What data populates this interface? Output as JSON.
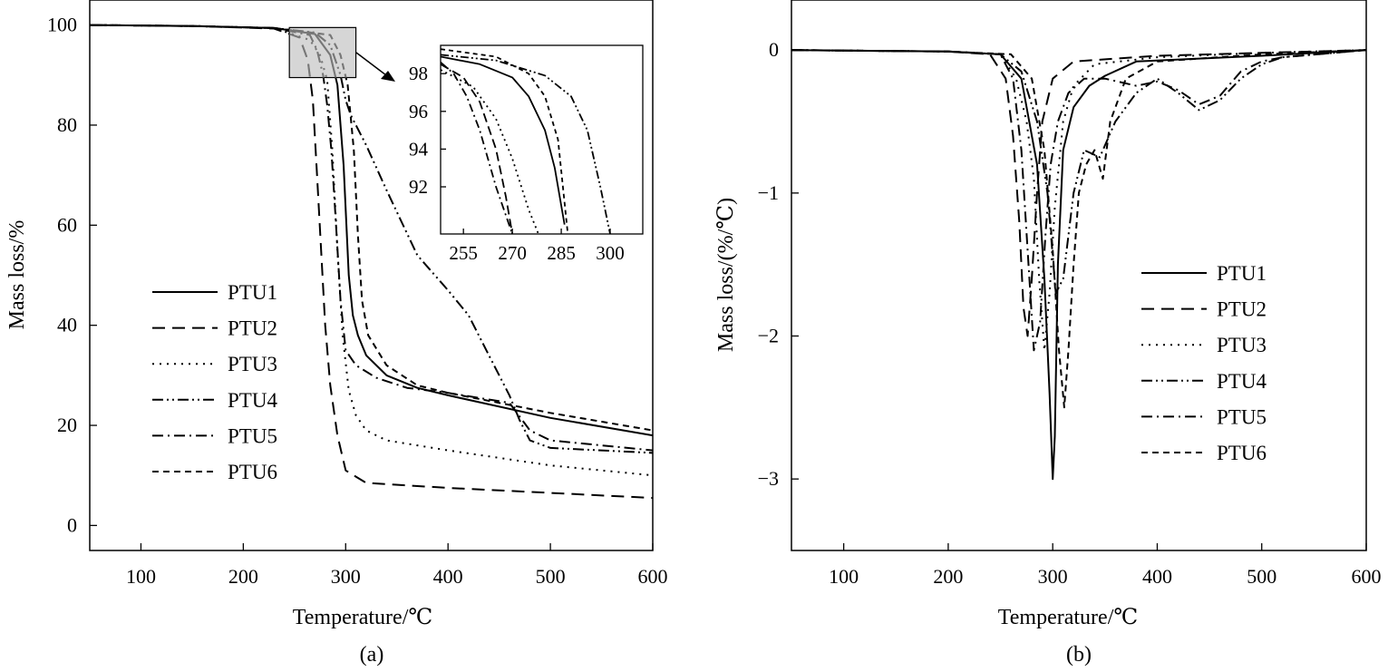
{
  "chart_data": [
    {
      "panel": "(a)",
      "type": "line",
      "xlabel": "Temperature/℃",
      "ylabel": "Mass loss/%",
      "xlim": [
        50,
        600
      ],
      "ylim": [
        -5,
        105
      ],
      "xticks": [
        100,
        200,
        300,
        400,
        500,
        600
      ],
      "yticks": [
        0,
        20,
        40,
        60,
        80,
        100
      ],
      "legend_position": "center-left",
      "series": [
        {
          "name": "PTU1",
          "dash": "solid",
          "x": [
            50,
            150,
            230,
            270,
            285,
            292,
            298,
            303,
            307,
            312,
            320,
            340,
            370,
            400,
            500,
            600
          ],
          "y": [
            100,
            99.8,
            99.4,
            98.2,
            94,
            88,
            72,
            50,
            42,
            38,
            34,
            30,
            27.5,
            26,
            21.5,
            18
          ]
        },
        {
          "name": "PTU2",
          "dash": "long",
          "x": [
            50,
            150,
            230,
            255,
            263,
            268,
            272,
            276,
            280,
            285,
            292,
            300,
            320,
            400,
            500,
            600
          ],
          "y": [
            100,
            99.8,
            99.3,
            97.5,
            93,
            85,
            70,
            55,
            40,
            28,
            18,
            11,
            8.5,
            7.5,
            6.5,
            5.5
          ]
        },
        {
          "name": "PTU3",
          "dash": "dotted",
          "x": [
            50,
            150,
            230,
            265,
            275,
            282,
            287,
            292,
            297,
            303,
            310,
            320,
            340,
            400,
            500,
            600
          ],
          "y": [
            100,
            99.8,
            99.4,
            97,
            94,
            89,
            75,
            55,
            38,
            27,
            22,
            19,
            17,
            15,
            12,
            10
          ]
        },
        {
          "name": "PTU4",
          "dash": "dashdotdot",
          "x": [
            50,
            150,
            230,
            270,
            285,
            295,
            300,
            305,
            310,
            320,
            340,
            370,
            400,
            420,
            440,
            460,
            470,
            480,
            500,
            600
          ],
          "y": [
            100,
            99.8,
            99.4,
            98.5,
            96,
            90,
            85,
            82,
            80,
            76,
            67,
            54,
            47,
            42,
            34,
            26,
            21,
            17,
            15.5,
            14.5
          ]
        },
        {
          "name": "PTU5",
          "dash": "dashdot",
          "x": [
            50,
            150,
            230,
            265,
            272,
            278,
            282,
            286,
            290,
            295,
            300,
            310,
            330,
            360,
            400,
            430,
            460,
            480,
            500,
            600
          ],
          "y": [
            100,
            99.8,
            99.4,
            98,
            95,
            90,
            84,
            75,
            62,
            45,
            35,
            32,
            29.5,
            27.5,
            26.5,
            25.5,
            24.5,
            19,
            17,
            15
          ]
        },
        {
          "name": "PTU6",
          "dash": "dashed",
          "x": [
            50,
            150,
            230,
            285,
            295,
            302,
            308,
            312,
            316,
            322,
            340,
            370,
            400,
            500,
            600
          ],
          "y": [
            100,
            99.8,
            99.4,
            98,
            94,
            88,
            75,
            58,
            45,
            38,
            32,
            28,
            26.5,
            22.5,
            19
          ]
        }
      ],
      "inset": {
        "xlim": [
          248,
          310
        ],
        "ylim": [
          89.5,
          99.5
        ],
        "xticks": [
          255,
          270,
          285,
          300
        ],
        "yticks": [
          92,
          94,
          96,
          98
        ],
        "zoom_box_x": [
          245,
          310
        ],
        "zoom_box_y": [
          89.5,
          99.5
        ],
        "series": [
          {
            "name": "PTU1",
            "x": [
              248,
              260,
              270,
              275,
              280,
              283,
              286
            ],
            "y": [
              98.9,
              98.5,
              97.8,
              96.8,
              95,
              93,
              90
            ]
          },
          {
            "name": "PTU2",
            "x": [
              248,
              255,
              260,
              265,
              268,
              270
            ],
            "y": [
              98.5,
              97.8,
              96.5,
              94,
              91.5,
              89.5
            ]
          },
          {
            "name": "PTU3",
            "x": [
              248,
              258,
              265,
              270,
              275,
              278
            ],
            "y": [
              98.2,
              97.3,
              95.6,
              93.5,
              90.8,
              89.5
            ]
          },
          {
            "name": "PTU4",
            "x": [
              248,
              265,
              280,
              288,
              293,
              297,
              300
            ],
            "y": [
              99,
              98.7,
              97.9,
              96.8,
              95,
              92,
              89.5
            ]
          },
          {
            "name": "PTU5",
            "x": [
              248,
              252,
              256,
              260,
              265,
              270
            ],
            "y": [
              98.6,
              98,
              96.8,
              95,
              92,
              89.5
            ]
          },
          {
            "name": "PTU6",
            "x": [
              248,
              265,
              275,
              280,
              284,
              287
            ],
            "y": [
              99.3,
              98.9,
              98,
              96.8,
              94.5,
              89.5
            ]
          }
        ]
      }
    },
    {
      "panel": "(b)",
      "type": "line",
      "xlabel": "Temperature/℃",
      "ylabel": "Mass loss/(%/℃)",
      "xlim": [
        50,
        600
      ],
      "ylim": [
        -3.5,
        0.35
      ],
      "xticks": [
        100,
        200,
        300,
        400,
        500,
        600
      ],
      "yticks": [
        0,
        -1,
        -2,
        -3
      ],
      "ytick_labels": [
        "0",
        "−1",
        "−2",
        "−3"
      ],
      "legend_position": "center-right",
      "series": [
        {
          "name": "PTU1",
          "dash": "solid",
          "x": [
            50,
            200,
            250,
            270,
            285,
            292,
            297,
            300,
            302,
            305,
            310,
            320,
            335,
            350,
            380,
            500,
            600
          ],
          "y": [
            0,
            -0.01,
            -0.03,
            -0.2,
            -0.8,
            -1.6,
            -2.4,
            -3.0,
            -2.7,
            -1.5,
            -0.7,
            -0.4,
            -0.25,
            -0.18,
            -0.08,
            -0.04,
            0
          ]
        },
        {
          "name": "PTU2",
          "dash": "long",
          "x": [
            50,
            200,
            240,
            255,
            262,
            268,
            272,
            276,
            280,
            285,
            290,
            300,
            320,
            400,
            500,
            600
          ],
          "y": [
            0,
            -0.01,
            -0.03,
            -0.2,
            -0.6,
            -1.2,
            -1.8,
            -2.0,
            -1.6,
            -1.0,
            -0.5,
            -0.2,
            -0.08,
            -0.04,
            -0.02,
            0
          ]
        },
        {
          "name": "PTU3",
          "dash": "dotted",
          "x": [
            50,
            200,
            250,
            265,
            275,
            282,
            287,
            292,
            297,
            302,
            310,
            320,
            340,
            400,
            500,
            600
          ],
          "y": [
            0,
            -0.01,
            -0.03,
            -0.2,
            -0.5,
            -0.9,
            -1.6,
            -2.1,
            -1.7,
            -1.1,
            -0.5,
            -0.25,
            -0.1,
            -0.05,
            -0.02,
            0
          ]
        },
        {
          "name": "PTU4",
          "dash": "dashdotdot",
          "x": [
            50,
            200,
            250,
            270,
            285,
            295,
            303,
            310,
            320,
            330,
            345,
            360,
            380,
            400,
            420,
            440,
            460,
            480,
            500,
            520,
            600
          ],
          "y": [
            0,
            -0.01,
            -0.03,
            -0.15,
            -0.5,
            -1.0,
            -1.7,
            -1.6,
            -1.0,
            -0.7,
            -0.75,
            -0.5,
            -0.3,
            -0.2,
            -0.3,
            -0.42,
            -0.35,
            -0.2,
            -0.1,
            -0.05,
            0
          ]
        },
        {
          "name": "PTU5",
          "dash": "dashdot",
          "x": [
            50,
            200,
            250,
            262,
            270,
            276,
            282,
            288,
            293,
            298,
            305,
            315,
            330,
            350,
            380,
            400,
            420,
            440,
            460,
            480,
            500,
            520,
            600
          ],
          "y": [
            0,
            -0.01,
            -0.03,
            -0.2,
            -0.7,
            -1.4,
            -2.1,
            -1.9,
            -1.3,
            -0.8,
            -0.5,
            -0.3,
            -0.2,
            -0.2,
            -0.25,
            -0.22,
            -0.28,
            -0.38,
            -0.32,
            -0.15,
            -0.08,
            -0.05,
            0
          ]
        },
        {
          "name": "PTU6",
          "dash": "dashed",
          "x": [
            50,
            200,
            260,
            280,
            292,
            300,
            306,
            311,
            315,
            320,
            325,
            332,
            340,
            348,
            355,
            370,
            400,
            500,
            600
          ],
          "y": [
            0,
            -0.01,
            -0.03,
            -0.2,
            -0.7,
            -1.4,
            -2.1,
            -2.5,
            -2.1,
            -1.5,
            -1.0,
            -0.8,
            -0.7,
            -0.9,
            -0.5,
            -0.2,
            -0.08,
            -0.03,
            0
          ]
        }
      ]
    }
  ]
}
